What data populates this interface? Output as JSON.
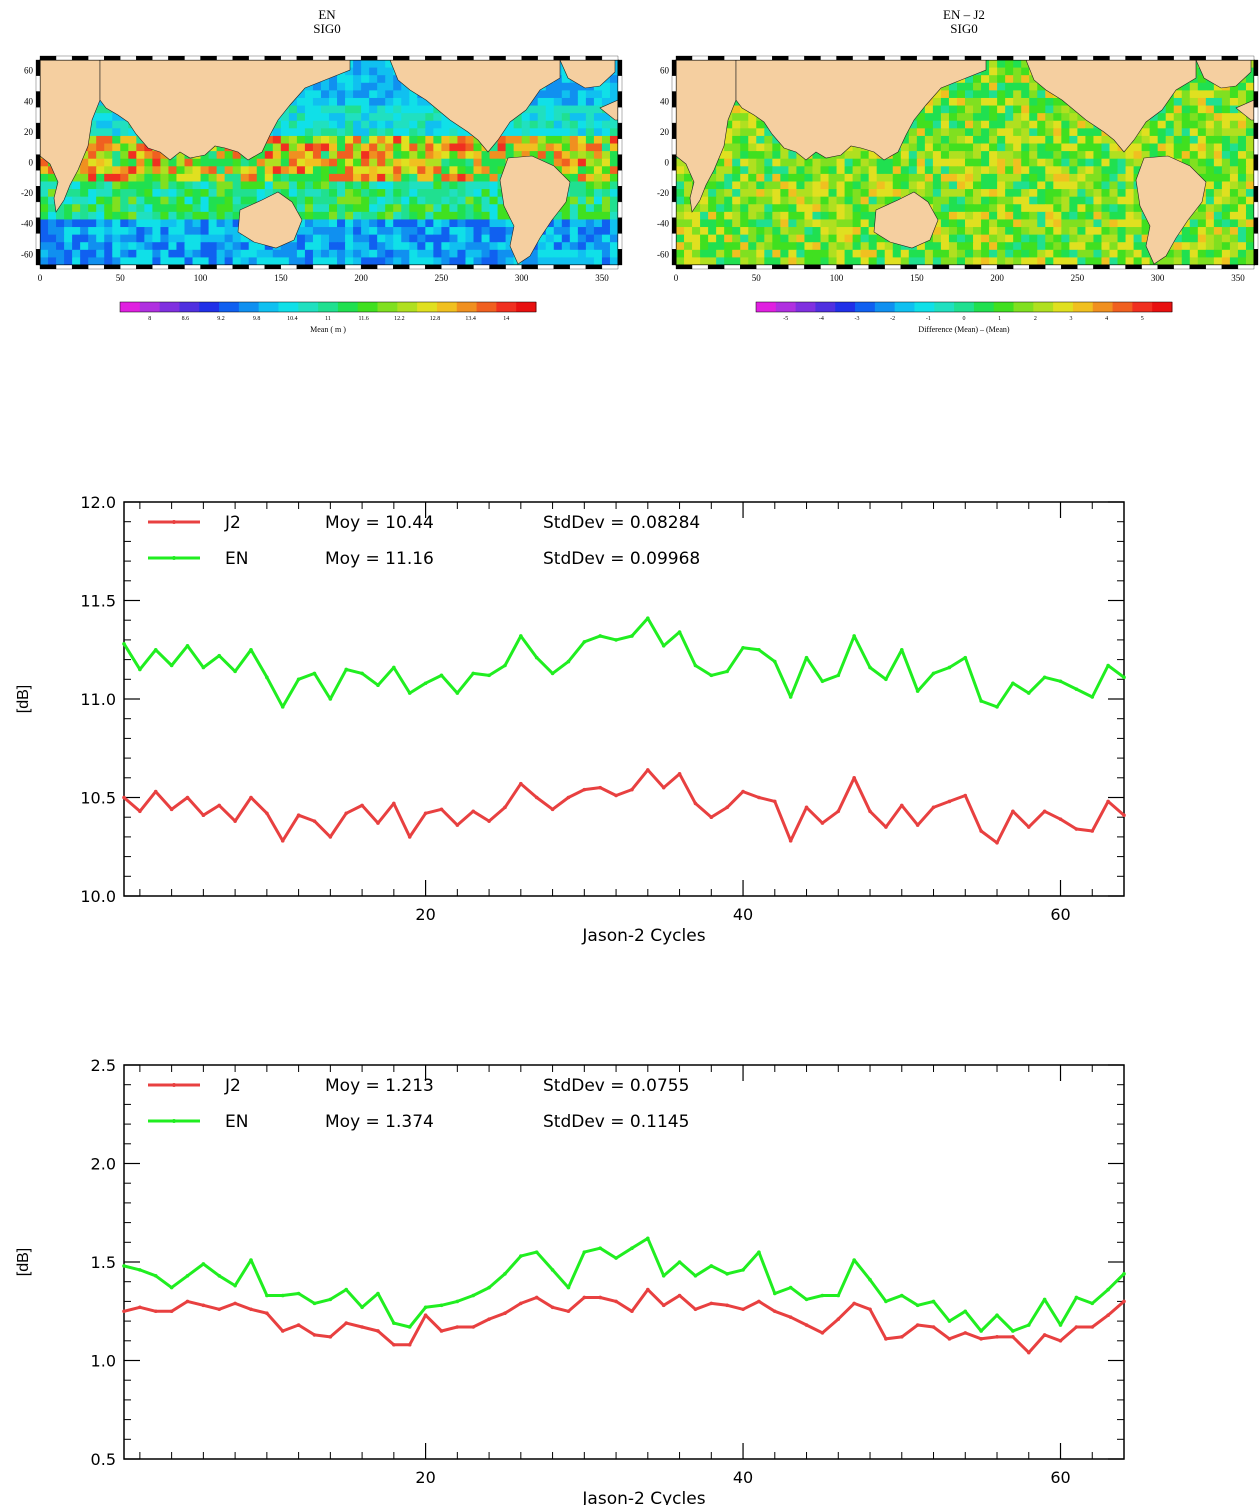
{
  "maps": [
    {
      "title_line1": "EN",
      "title_line2": "SIG0",
      "x_ticks": [
        "0",
        "50",
        "100",
        "150",
        "200",
        "250",
        "300",
        "350"
      ],
      "y_ticks": [
        "60",
        "40",
        "20",
        "0",
        "-20",
        "-40",
        "-60"
      ],
      "colorbar_ticks": [
        "8",
        "8.6",
        "9.2",
        "9.8",
        "10.4",
        "11",
        "11.6",
        "12.2",
        "12.8",
        "13.4",
        "14"
      ],
      "colorbar_label": "Mean ( m )",
      "colorbar_colors": [
        "#e020e0",
        "#b030e0",
        "#8030e0",
        "#5030e0",
        "#2030e8",
        "#1060f0",
        "#1090f0",
        "#10c0f0",
        "#10e0e8",
        "#20e0c0",
        "#20e090",
        "#20e050",
        "#40e020",
        "#80e020",
        "#b0e020",
        "#e0e020",
        "#f0c020",
        "#f09020",
        "#f06020",
        "#f03020",
        "#e81010"
      ]
    },
    {
      "title_line1": "EN – J2",
      "title_line2": "SIG0",
      "x_ticks": [
        "0",
        "50",
        "100",
        "150",
        "200",
        "250",
        "300",
        "350"
      ],
      "y_ticks": [
        "60",
        "40",
        "20",
        "0",
        "-20",
        "-40",
        "-60"
      ],
      "colorbar_ticks": [
        "-5",
        "-4",
        "-3",
        "-2",
        "-1",
        "0",
        "1",
        "2",
        "3",
        "4",
        "5"
      ],
      "colorbar_label": "Difference (Mean) – (Mean)",
      "colorbar_colors": [
        "#e020e0",
        "#b030e0",
        "#8030e0",
        "#5030e0",
        "#2030e8",
        "#1060f0",
        "#1090f0",
        "#10c0f0",
        "#10e0e8",
        "#20e0c0",
        "#20e090",
        "#20e050",
        "#40e020",
        "#80e020",
        "#b0e020",
        "#e0e020",
        "#f0c020",
        "#f09020",
        "#f06020",
        "#f03020",
        "#e81010"
      ]
    }
  ],
  "chart_data": [
    {
      "type": "line",
      "xlabel": "Jason-2 Cycles",
      "ylabel": "[dB]",
      "xlim": [
        1,
        64
      ],
      "ylim": [
        10.0,
        12.0
      ],
      "x_ticks": [
        20,
        40,
        60
      ],
      "y_ticks": [
        "10.0",
        "10.5",
        "11.0",
        "11.5",
        "12.0"
      ],
      "legend": [
        {
          "name": "J2",
          "moy": "Moy = 10.44",
          "std": "StdDev = 0.08284"
        },
        {
          "name": "EN",
          "moy": "Moy = 11.16",
          "std": "StdDev = 0.09968"
        }
      ],
      "series": [
        {
          "name": "J2",
          "color": "#e84040",
          "values": [
            10.5,
            10.43,
            10.53,
            10.44,
            10.5,
            10.41,
            10.46,
            10.38,
            10.5,
            10.42,
            10.28,
            10.41,
            10.38,
            10.3,
            10.42,
            10.46,
            10.37,
            10.47,
            10.3,
            10.42,
            10.44,
            10.36,
            10.43,
            10.38,
            10.45,
            10.57,
            10.5,
            10.44,
            10.5,
            10.54,
            10.55,
            10.51,
            10.54,
            10.64,
            10.55,
            10.62,
            10.47,
            10.4,
            10.45,
            10.53,
            10.5,
            10.48,
            10.28,
            10.45,
            10.37,
            10.43,
            10.6,
            10.43,
            10.35,
            10.46,
            10.36,
            10.45,
            10.48,
            10.51,
            10.33,
            10.27,
            10.43,
            10.35,
            10.43,
            10.39,
            10.34,
            10.33,
            10.48,
            10.41
          ]
        },
        {
          "name": "EN",
          "color": "#20ee20",
          "values": [
            11.28,
            11.15,
            11.25,
            11.17,
            11.27,
            11.16,
            11.22,
            11.14,
            11.25,
            11.11,
            10.96,
            11.1,
            11.13,
            11.0,
            11.15,
            11.13,
            11.07,
            11.16,
            11.03,
            11.08,
            11.12,
            11.03,
            11.13,
            11.12,
            11.17,
            11.32,
            11.21,
            11.13,
            11.19,
            11.29,
            11.32,
            11.3,
            11.32,
            11.41,
            11.27,
            11.34,
            11.17,
            11.12,
            11.14,
            11.26,
            11.25,
            11.19,
            11.01,
            11.21,
            11.09,
            11.12,
            11.32,
            11.16,
            11.1,
            11.25,
            11.04,
            11.13,
            11.16,
            11.21,
            10.99,
            10.96,
            11.08,
            11.03,
            11.11,
            11.09,
            11.05,
            11.01,
            11.17,
            11.11
          ]
        }
      ]
    },
    {
      "type": "line",
      "xlabel": "Jason-2 Cycles",
      "ylabel": "[dB]",
      "xlim": [
        1,
        64
      ],
      "ylim": [
        0.5,
        2.5
      ],
      "x_ticks": [
        20,
        40,
        60
      ],
      "y_ticks": [
        "0.5",
        "1.0",
        "1.5",
        "2.0",
        "2.5"
      ],
      "legend": [
        {
          "name": "J2",
          "moy": "Moy = 1.213",
          "std": "StdDev = 0.0755"
        },
        {
          "name": "EN",
          "moy": "Moy = 1.374",
          "std": "StdDev = 0.1145"
        }
      ],
      "series": [
        {
          "name": "J2",
          "color": "#e84040",
          "values": [
            1.25,
            1.27,
            1.25,
            1.25,
            1.3,
            1.28,
            1.26,
            1.29,
            1.26,
            1.24,
            1.15,
            1.18,
            1.13,
            1.12,
            1.19,
            1.17,
            1.15,
            1.08,
            1.08,
            1.23,
            1.15,
            1.17,
            1.17,
            1.21,
            1.24,
            1.29,
            1.32,
            1.27,
            1.25,
            1.32,
            1.32,
            1.3,
            1.25,
            1.36,
            1.28,
            1.33,
            1.26,
            1.29,
            1.28,
            1.26,
            1.3,
            1.25,
            1.22,
            1.18,
            1.14,
            1.21,
            1.29,
            1.26,
            1.11,
            1.12,
            1.18,
            1.17,
            1.11,
            1.14,
            1.11,
            1.12,
            1.12,
            1.04,
            1.13,
            1.1,
            1.17,
            1.17,
            1.23,
            1.3
          ]
        },
        {
          "name": "EN",
          "color": "#20ee20",
          "values": [
            1.48,
            1.46,
            1.43,
            1.37,
            1.43,
            1.49,
            1.43,
            1.38,
            1.51,
            1.33,
            1.33,
            1.34,
            1.29,
            1.31,
            1.36,
            1.27,
            1.34,
            1.19,
            1.17,
            1.27,
            1.28,
            1.3,
            1.33,
            1.37,
            1.44,
            1.53,
            1.55,
            1.46,
            1.37,
            1.55,
            1.57,
            1.52,
            1.57,
            1.62,
            1.43,
            1.5,
            1.43,
            1.48,
            1.44,
            1.46,
            1.55,
            1.34,
            1.37,
            1.31,
            1.33,
            1.33,
            1.51,
            1.41,
            1.3,
            1.33,
            1.28,
            1.3,
            1.2,
            1.25,
            1.15,
            1.23,
            1.15,
            1.18,
            1.31,
            1.18,
            1.32,
            1.29,
            1.36,
            1.44
          ]
        }
      ]
    }
  ]
}
